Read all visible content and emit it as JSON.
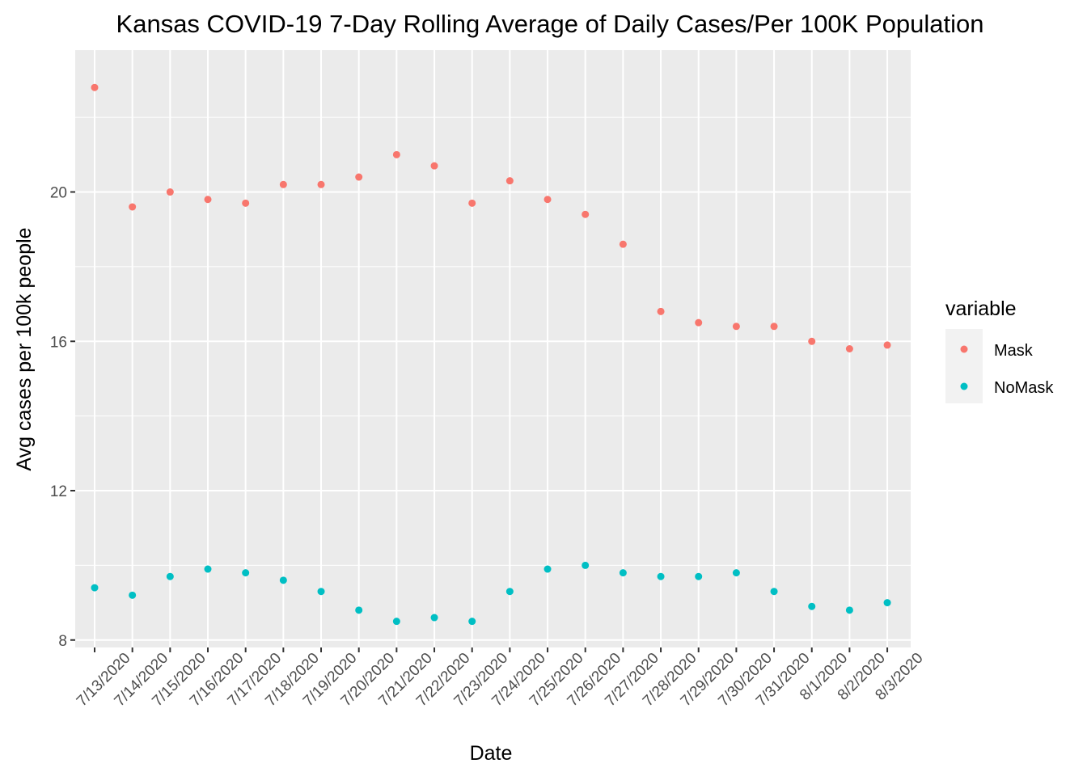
{
  "chart_data": {
    "type": "scatter",
    "title": "Kansas COVID-19 7-Day Rolling Average of Daily Cases/Per 100K Population",
    "xlabel": "Date",
    "ylabel": "Avg cases per 100k people",
    "categories": [
      "7/13/2020",
      "7/14/2020",
      "7/15/2020",
      "7/16/2020",
      "7/17/2020",
      "7/18/2020",
      "7/19/2020",
      "7/20/2020",
      "7/21/2020",
      "7/22/2020",
      "7/23/2020",
      "7/24/2020",
      "7/25/2020",
      "7/26/2020",
      "7/27/2020",
      "7/28/2020",
      "7/29/2020",
      "7/30/2020",
      "7/31/2020",
      "8/1/2020",
      "8/2/2020",
      "8/3/2020"
    ],
    "ylim": [
      7.8,
      23.8
    ],
    "yticks": [
      8,
      12,
      16,
      20
    ],
    "ytick_labels": [
      "8",
      "12",
      "16",
      "20"
    ],
    "grid": true,
    "legend": {
      "title": "variable",
      "placement": "right"
    },
    "series": [
      {
        "name": "Mask",
        "color": "#F8766D",
        "values": [
          22.8,
          19.6,
          20.0,
          19.8,
          19.7,
          20.2,
          20.2,
          20.4,
          21.0,
          20.7,
          19.7,
          20.3,
          19.8,
          19.4,
          18.6,
          16.8,
          16.5,
          16.4,
          16.4,
          16.0,
          15.8,
          15.9
        ]
      },
      {
        "name": "NoMask",
        "color": "#00BFC4",
        "values": [
          9.4,
          9.2,
          9.7,
          9.9,
          9.8,
          9.6,
          9.3,
          8.8,
          8.5,
          8.6,
          8.5,
          9.3,
          9.9,
          10.0,
          9.8,
          9.7,
          9.7,
          9.8,
          9.3,
          8.9,
          8.8,
          9.0
        ]
      }
    ]
  }
}
